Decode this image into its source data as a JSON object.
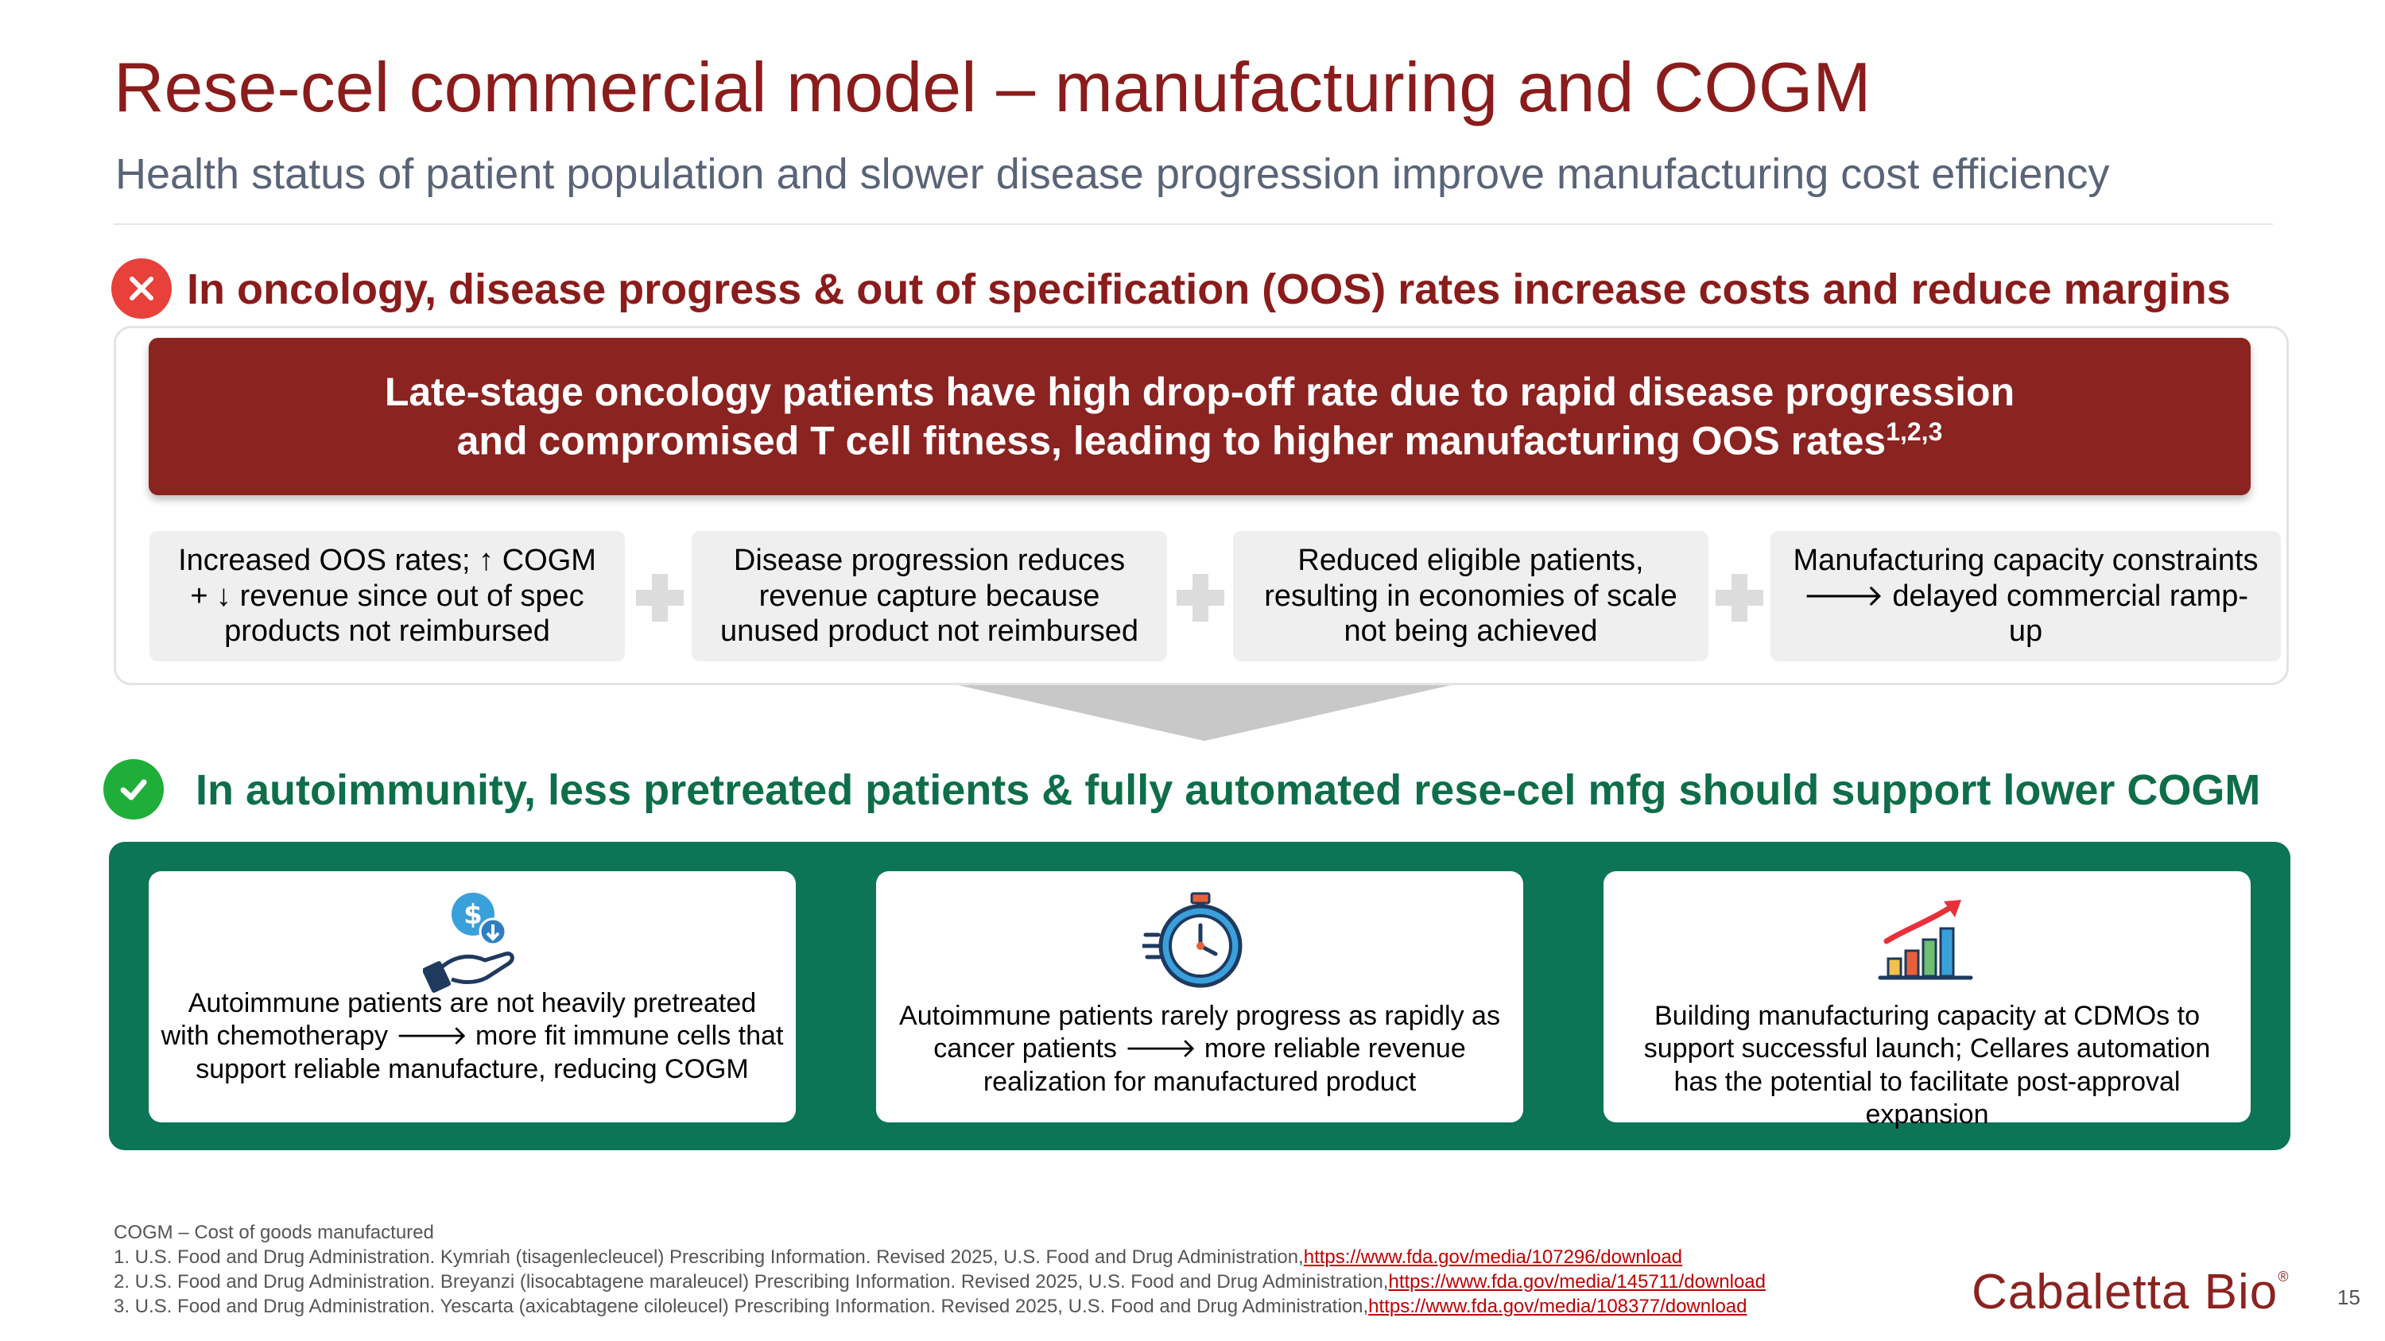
{
  "title": "Rese-cel commercial model – manufacturing and COGM",
  "subtitle": "Health status of patient population and slower disease progression improve manufacturing cost efficiency",
  "oncology": {
    "heading": "In oncology, disease progress & out of specification (OOS) rates increase costs and reduce margins",
    "banner_line1": "Late-stage oncology patients have high drop-off rate due to rapid disease progression",
    "banner_line2": "and compromised T cell fitness, leading to higher manufacturing OOS rates",
    "banner_sup": "1,2,3",
    "cards": [
      {
        "line1": "Increased OOS rates; ↑ COGM",
        "line2": "+ ↓ revenue since out of spec",
        "line3": "products not reimbursed"
      },
      {
        "line1": "Disease progression reduces",
        "line2": "revenue capture because",
        "line3": "unused product not reimbursed"
      },
      {
        "line1": "Reduced eligible patients,",
        "line2": "resulting in economies of scale",
        "line3": "not being achieved"
      },
      {
        "line1": "Manufacturing capacity constraints",
        "line2": "🡒 delayed commercial ramp-up",
        "line3": ""
      }
    ]
  },
  "autoimmunity": {
    "heading": "In autoimmunity, less pretreated patients & fully automated rese-cel mfg should support lower COGM",
    "cards": [
      {
        "icon": "hand-dollar-icon",
        "line1": "Autoimmune patients are not heavily pretreated",
        "line2": "with chemotherapy 🡒 more fit immune cells that",
        "line3": "support reliable manufacture, reducing COGM",
        "line4": ""
      },
      {
        "icon": "stopwatch-icon",
        "line1": "Autoimmune patients rarely progress as rapidly as",
        "line2": "cancer patients 🡒 more reliable revenue",
        "line3": "realization for manufactured product",
        "line4": ""
      },
      {
        "icon": "growth-chart-icon",
        "line1": "Building manufacturing capacity at CDMOs to",
        "line2": "support successful launch; Cellares automation",
        "line3": "has the potential to facilitate post-approval",
        "line4": "expansion"
      }
    ]
  },
  "footnotes": {
    "abbrev": "COGM – Cost of goods manufactured",
    "refs": [
      {
        "text": "1. U.S. Food and Drug Administration. Kymriah (tisagenlecleucel) Prescribing Information. Revised 2025, U.S. Food and Drug Administration,",
        "link": "https://www.fda.gov/media/107296/download"
      },
      {
        "text": "2. U.S. Food and Drug Administration. Breyanzi (lisocabtagene maraleucel) Prescribing Information. Revised 2025, U.S. Food and Drug Administration,",
        "link": "https://www.fda.gov/media/145711/download"
      },
      {
        "text": "3. U.S. Food and Drug Administration. Yescarta (axicabtagene ciloleucel) Prescribing Information. Revised 2025, U.S. Food and Drug Administration,",
        "link": "https://www.fda.gov/media/108377/download"
      }
    ]
  },
  "logo_text": "Cabaletta Bio",
  "logo_mark": "®",
  "page_number": "15",
  "colors": {
    "brand_red": "#8b1c1c",
    "banner_red": "#8b2320",
    "brand_green": "#0c7556",
    "error": "#e8403a",
    "success": "#1fae3a"
  }
}
